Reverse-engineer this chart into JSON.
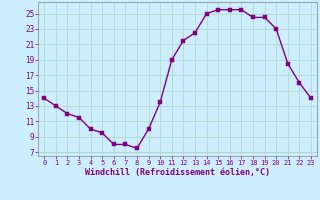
{
  "x": [
    0,
    1,
    2,
    3,
    4,
    5,
    6,
    7,
    8,
    9,
    10,
    11,
    12,
    13,
    14,
    15,
    16,
    17,
    18,
    19,
    20,
    21,
    22,
    23
  ],
  "y": [
    14.0,
    13.0,
    12.0,
    11.5,
    10.0,
    9.5,
    8.0,
    8.0,
    7.5,
    10.0,
    13.5,
    19.0,
    21.5,
    22.5,
    25.0,
    25.5,
    25.5,
    25.5,
    24.5,
    24.5,
    23.0,
    18.5,
    16.0,
    14.0
  ],
  "line_color": "#800080",
  "marker_color": "#800080",
  "bg_color": "#cceeff",
  "grid_color": "#aaddcc",
  "xlabel": "Windchill (Refroidissement éolien,°C)",
  "xlabel_color": "#800080",
  "tick_color": "#800080",
  "xlim": [
    -0.5,
    23.5
  ],
  "ylim": [
    6.5,
    26.5
  ],
  "yticks": [
    7,
    9,
    11,
    13,
    15,
    17,
    19,
    21,
    23,
    25
  ],
  "xticks": [
    0,
    1,
    2,
    3,
    4,
    5,
    6,
    7,
    8,
    9,
    10,
    11,
    12,
    13,
    14,
    15,
    16,
    17,
    18,
    19,
    20,
    21,
    22,
    23
  ],
  "xtick_labels": [
    "0",
    "1",
    "2",
    "3",
    "4",
    "5",
    "6",
    "7",
    "8",
    "9",
    "10",
    "11",
    "12",
    "13",
    "14",
    "15",
    "16",
    "17",
    "18",
    "19",
    "20",
    "21",
    "22",
    "23"
  ],
  "line_width": 1.0,
  "marker_size": 2.5,
  "tick_fontsize": 5.0,
  "ytick_fontsize": 5.5,
  "xlabel_fontsize": 6.0
}
